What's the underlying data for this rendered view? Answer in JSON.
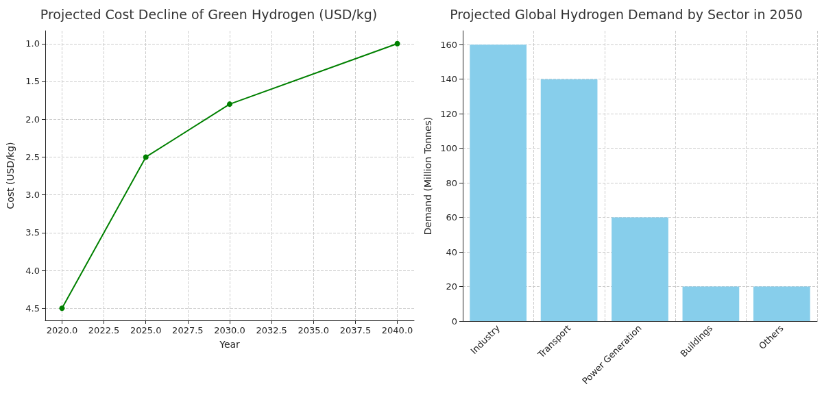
{
  "chart_data": [
    {
      "type": "line",
      "title": "Projected Cost Decline of Green Hydrogen (USD/kg)",
      "xlabel": "Year",
      "ylabel": "Cost (USD/kg)",
      "x": [
        2020,
        2025,
        2030,
        2040
      ],
      "series": [
        {
          "color": "#008000",
          "values": [
            4.5,
            2.5,
            1.8,
            1.0
          ]
        }
      ],
      "xlim": [
        2019,
        2041
      ],
      "xticks": [
        {
          "value": 2020,
          "label": "2020.0"
        },
        {
          "value": 2022.5,
          "label": "2022.5"
        },
        {
          "value": 2025,
          "label": "2025.0"
        },
        {
          "value": 2027.5,
          "label": "2027.5"
        },
        {
          "value": 2030,
          "label": "2030.0"
        },
        {
          "value": 2032.5,
          "label": "2032.5"
        },
        {
          "value": 2035,
          "label": "2035.0"
        },
        {
          "value": 2037.5,
          "label": "2037.5"
        },
        {
          "value": 2040,
          "label": "2040.0"
        }
      ],
      "ylim": [
        4.66,
        0.83
      ],
      "yticks": [
        {
          "value": 1,
          "label": "1.0"
        },
        {
          "value": 1.5,
          "label": "1.5"
        },
        {
          "value": 2,
          "label": "2.0"
        },
        {
          "value": 2.5,
          "label": "2.5"
        },
        {
          "value": 3,
          "label": "3.0"
        },
        {
          "value": 3.5,
          "label": "3.5"
        },
        {
          "value": 4,
          "label": "4.0"
        },
        {
          "value": 4.5,
          "label": "4.5"
        }
      ],
      "grid": true,
      "marker": "circle",
      "line_style": "solid"
    },
    {
      "type": "bar",
      "title": "Projected Global Hydrogen Demand by Sector in 2050",
      "ylabel": "Demand (Million Tonnes)",
      "categories": [
        "Industry",
        "Transport",
        "Power Generation",
        "Buildings",
        "Others"
      ],
      "series": [
        {
          "color": "#87ceeb",
          "values": [
            160,
            140,
            60,
            20,
            20
          ]
        }
      ],
      "ylim": [
        0,
        168
      ],
      "yticks": [
        0,
        20,
        40,
        60,
        80,
        100,
        120,
        140,
        160
      ],
      "grid": true
    }
  ]
}
